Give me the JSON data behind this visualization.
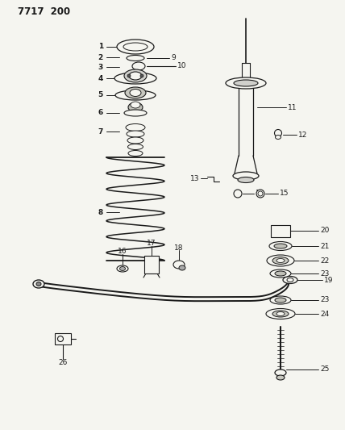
{
  "title": "7717  200",
  "bg_color": "#f5f5f0",
  "line_color": "#1a1a1a",
  "figsize": [
    4.28,
    5.33
  ],
  "dpi": 100
}
